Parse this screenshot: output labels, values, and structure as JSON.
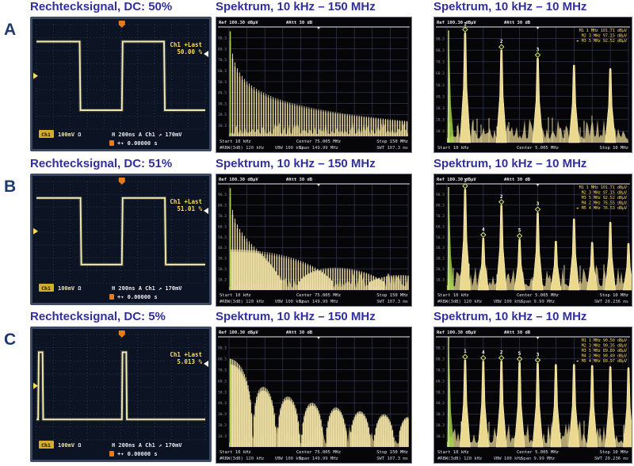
{
  "figure": {
    "row_labels": [
      "A",
      "B",
      "C"
    ]
  },
  "colors": {
    "title_color": "#312f9d",
    "label_color": "#1d3a6e",
    "scope_bg": "#0c1424",
    "scope_bezel": "#3d4a66",
    "scope_grid": "#45587e",
    "trace_yellow": "#f8edb0",
    "osd_yellow": "#ffd95e",
    "trigger_orange": "#e67c1e",
    "spectrum_bg": "#060609",
    "spectrum_grid": "#3c3c60",
    "spectrum_cream": "#f4e9ae",
    "spectrum_tan": "#cdbb84",
    "spectrum_green": "#a6d04a",
    "marker_green": "#d9ec70",
    "text_white": "#e8e8f0"
  },
  "chart_data": [
    {
      "row": "A",
      "scope": {
        "type": "line",
        "signal": "square_wave",
        "title": "Rechtecksignal, DC: 50%",
        "readout_label": "Ch1 +Last",
        "duty_readout": "50.00 %",
        "ch": "Ch1",
        "vert": "100mV Ω",
        "hline": "H 200ns  A  Ch1 ↗ 170mV",
        "time": "+▾ 0.00000 s",
        "timebase_per_div": "200 ns",
        "volts_per_div": "100 mV",
        "trigger_level": "170mV",
        "wave": "square",
        "high_div": 1.3,
        "low_div": 6.55,
        "edges_div": [
          0.08,
          2.56,
          5.06,
          7.56
        ],
        "pulses_div": []
      },
      "wide": {
        "type": "bar",
        "title": "Spektrum, 10 kHz – 150 MHz",
        "ref": "Ref 100.30 dBµV",
        "att": "#Att  30 dB",
        "start": "Start 10 kHz",
        "center": "Center 75.005 MHz",
        "stop": "Stop 150 MHz",
        "rbw": "#RBW(3dB) 120 kHz",
        "vbw": "VBW 100 kHz",
        "span": "Span 149.99 MHz",
        "swt": "SWT 107.3 ms",
        "yticks": [
          "90.3",
          "80.3",
          "70.3",
          "60.3",
          "50.3",
          "40.3",
          "30.3",
          "20.3",
          "10.3"
        ],
        "duty": 0.5,
        "lines": 150,
        "line_spacing_MHz": 1,
        "top_frac": 0.93,
        "range_db": 55,
        "noise_frac": 0.07,
        "green_frac": 0.96,
        "bottom_lines": 2,
        "seed": 11
      },
      "narrow": {
        "type": "bar",
        "title": "Spektrum, 10 kHz – 10 MHz",
        "ref": "Ref 100.30 dBµV",
        "att": "#Att  30 dB",
        "start": "Start 10 kHz",
        "center": "Center 5.005 MHz",
        "stop": "Stop 10 MHz",
        "rbw": "",
        "vbw": "",
        "span": "",
        "swt": "",
        "yticks": [
          "90.3",
          "80.3",
          "70.3",
          "60.3",
          "50.3",
          "40.3",
          "30.3",
          "20.3",
          "10.3"
        ],
        "harmonics_MHz": [
          1,
          2,
          3,
          4,
          5,
          6,
          7,
          8,
          9,
          10
        ],
        "peak_fracs": [
          0.95,
          0,
          0.8,
          0,
          0.73,
          0,
          0.67,
          0,
          0.64,
          0
        ],
        "marker_map": [
          [
            1,
            "1"
          ],
          [
            3,
            "2"
          ],
          [
            5,
            "3"
          ]
        ],
        "marker_table": [
          "M1  1 MHz   101.71 dBµV",
          "M2  3 MHz   97.15 dBµV",
          "► M3  5 MHz   92.52 dBµV"
        ],
        "left_spike_frac": 0.97,
        "noise_frac": 0.11,
        "bottom_lines": 1,
        "seed": 21
      }
    },
    {
      "row": "B",
      "scope": {
        "type": "line",
        "signal": "square_wave",
        "title": "Rechtecksignal, DC: 51%",
        "readout_label": "Ch1 +Last",
        "duty_readout": "51.01 %",
        "ch": "Ch1",
        "vert": "100mV Ω",
        "hline": "H 200ns  A  Ch1 ↗ 170mV",
        "time": "+▾ 0.00000 s",
        "timebase_per_div": "200 ns",
        "volts_per_div": "100 mV",
        "trigger_level": "170mV",
        "wave": "square",
        "high_div": 1.3,
        "low_div": 6.55,
        "edges_div": [
          0.08,
          2.61,
          5.06,
          7.61
        ],
        "pulses_div": []
      },
      "wide": {
        "type": "bar",
        "title": "Spektrum, 10 kHz – 150 MHz",
        "ref": "Ref 100.30 dBµV",
        "att": "#Att  30 dB",
        "start": "Start 10 kHz",
        "center": "Center 75.005 MHz",
        "stop": "Stop 150 MHz",
        "rbw": "#RBW(3dB) 120 kHz",
        "vbw": "VBW 100 kHz",
        "span": "Span 149.99 MHz",
        "swt": "SWT 107.3 ms",
        "yticks": [
          "90.3",
          "80.3",
          "70.3",
          "60.3",
          "50.3",
          "40.3",
          "30.3",
          "20.3",
          "10.3"
        ],
        "duty": 0.51,
        "lines": 150,
        "line_spacing_MHz": 1,
        "top_frac": 0.93,
        "range_db": 55,
        "noise_frac": 0.08,
        "green_frac": 0.96,
        "bottom_lines": 2,
        "seed": 12
      },
      "narrow": {
        "type": "bar",
        "title": "Spektrum, 10 kHz – 10 MHz",
        "ref": "Ref 100.30 dBµV",
        "att": "#Att  30 dB",
        "start": "Start 10 kHz",
        "center": "Center 5.005 MHz",
        "stop": "Stop 10 MHz",
        "rbw": "#RBW(3dB) 120 kHz",
        "vbw": "VBW 100 kHz",
        "span": "Span 9.99 MHz",
        "swt": "SWT 20.236 ms",
        "yticks": [
          "90.3",
          "80.3",
          "70.3",
          "60.3",
          "50.3",
          "40.3",
          "30.3",
          "20.3",
          "10.3"
        ],
        "harmonics_MHz": [
          1,
          2,
          3,
          4,
          5,
          6,
          7,
          8,
          9,
          10
        ],
        "peak_fracs": [
          0.95,
          0.49,
          0.8,
          0.48,
          0.73,
          0.46,
          0.67,
          0.45,
          0.64,
          0.44
        ],
        "marker_map": [
          [
            1,
            "1"
          ],
          [
            2,
            "4"
          ],
          [
            3,
            "2"
          ],
          [
            4,
            "5"
          ],
          [
            5,
            "3"
          ]
        ],
        "marker_table": [
          "M1  1 MHz   101.71 dBµV",
          "M2  3 MHz   97.15 dBµV",
          "M3  5 MHz   92.52 dBµV",
          "M4  2 MHz   76.55 dBµV",
          "► M5  4 MHz   76.53 dBµV"
        ],
        "left_spike_frac": 0.97,
        "noise_frac": 0.12,
        "bottom_lines": 2,
        "seed": 22
      }
    },
    {
      "row": "C",
      "scope": {
        "type": "line",
        "signal": "pulse_wave",
        "title": "Rechtecksignal, DC: 5%",
        "readout_label": "Ch1 +Last",
        "duty_readout": "5.013 %",
        "ch": "Ch1",
        "vert": "100mV Ω",
        "hline": "H 200ns  A  Ch1 ↗ 170mV",
        "time": "+▾ 0.00000 s",
        "timebase_per_div": "200 ns",
        "volts_per_div": "100 mV",
        "trigger_level": "170mV",
        "wave": "pulse",
        "high_div": 1.35,
        "low_div": 6.45,
        "edges_div": [],
        "pulses_div": [
          [
            0.1,
            0.36
          ],
          [
            5.06,
            5.32
          ]
        ]
      },
      "wide": {
        "type": "bar",
        "title": "Spektrum, 10 kHz – 150 MHz",
        "ref": "Ref 100.30 dBµV",
        "att": "#Att  30 dB",
        "start": "Start 10 kHz",
        "center": "Center 75.005 MHz",
        "stop": "Stop 150 MHz",
        "rbw": "#RBW(3dB) 120 kHz",
        "vbw": "VBW 100 kHz",
        "span": "Span 149.99 MHz",
        "swt": "SWT 107.3 ms",
        "yticks": [
          "90.3",
          "80.3",
          "70.3",
          "60.3",
          "50.3",
          "40.3",
          "30.3",
          "20.3",
          "10.3"
        ],
        "duty": 0.05,
        "lines": 150,
        "line_spacing_MHz": 1,
        "top_frac": 0.8,
        "range_db": 52,
        "noise_frac": 0.1,
        "green_frac": 0.8,
        "bottom_lines": 2,
        "seed": 13
      },
      "narrow": {
        "type": "bar",
        "title": "Spektrum, 10 kHz – 10 MHz",
        "ref": "Ref 100.30 dBµV",
        "att": "#Att  30 dB",
        "start": "Start 10 kHz",
        "center": "Center 5.005 MHz",
        "stop": "Stop 10 MHz",
        "rbw": "#RBW(3dB) 120 kHz",
        "vbw": "VBW 100 kHz",
        "span": "Span 9.99 MHz",
        "swt": "SWT 20.236 ms",
        "yticks": [
          "90.3",
          "80.3",
          "70.3",
          "60.3",
          "50.3",
          "40.3",
          "30.3",
          "20.3",
          "10.3"
        ],
        "harmonics_MHz": [
          1,
          2,
          3,
          4,
          5,
          6,
          7,
          8,
          9,
          10
        ],
        "peak_fracs": [
          0.79,
          0.78,
          0.78,
          0.77,
          0.76,
          0.75,
          0.75,
          0.74,
          0.73,
          0.72
        ],
        "marker_map": [
          [
            1,
            "1"
          ],
          [
            2,
            "4"
          ],
          [
            3,
            "2"
          ],
          [
            4,
            "5"
          ],
          [
            5,
            "3"
          ]
        ],
        "marker_table": [
          "M1  1 MHz   90.50 dBµV",
          "M2  3 MHz   90.35 dBµV",
          "M3  5 MHz   89.89 dBµV",
          "M4  2 MHz   90.49 dBµV",
          "► M5  4 MHz   89.97 dBµV"
        ],
        "left_spike_frac": 1.0,
        "noise_frac": 0.12,
        "bottom_lines": 2,
        "seed": 23
      }
    }
  ]
}
